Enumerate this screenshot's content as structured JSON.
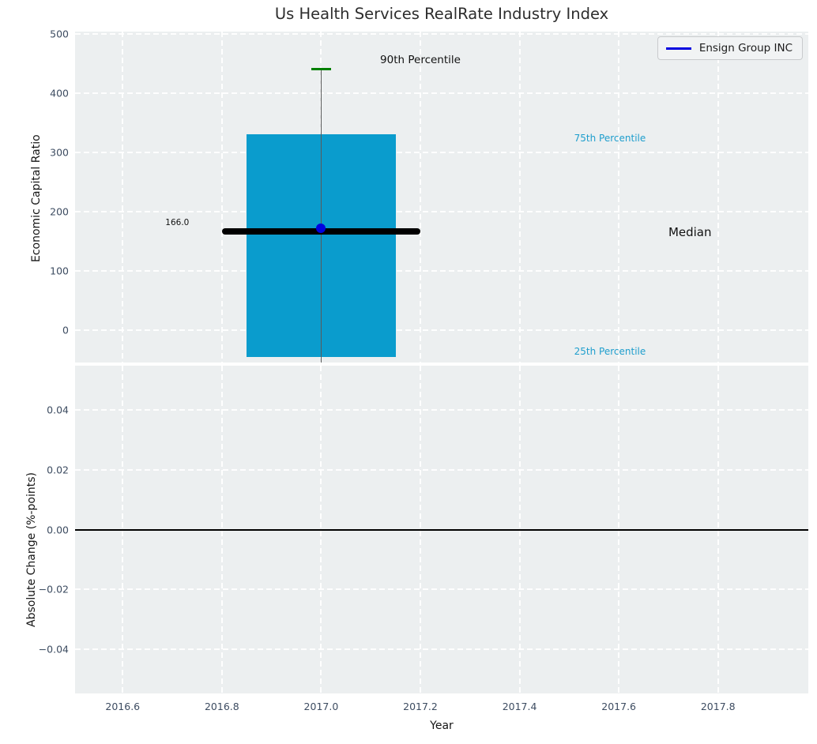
{
  "legend": {
    "label": "Ensign Group INC",
    "line_color": "#0101e0",
    "position": "upper right"
  },
  "colors": {
    "figure_background": "#ffffff",
    "axes_background": "#eceff0",
    "grid": "#ffffff",
    "tick_label": "#3d4c61",
    "bar": "#0a9ccd",
    "median": "#000000",
    "whisker": "#5a5a5a",
    "percentile_cap": "#008000",
    "company": "#0101e0",
    "percentile_text": "#1e9ecd"
  },
  "chart_data": [
    {
      "type": "bar",
      "title": "Us Health Services RealRate Industry Index",
      "ylabel": "Economic Capital Ratio",
      "xlabel": "",
      "xlim": [
        2016.504,
        2017.982
      ],
      "ylim": [
        -54.7,
        503.5
      ],
      "grid": true,
      "legend_position": "upper right",
      "yticks": [
        {
          "v": 0,
          "label": "0"
        },
        {
          "v": 100,
          "label": "100"
        },
        {
          "v": 200,
          "label": "200"
        },
        {
          "v": 300,
          "label": "300"
        },
        {
          "v": 400,
          "label": "400"
        },
        {
          "v": 500,
          "label": "500"
        }
      ],
      "xticks": [
        {
          "v": 2016.6,
          "label": "2016.6"
        },
        {
          "v": 2016.8,
          "label": "2016.8"
        },
        {
          "v": 2017.0,
          "label": "2017.0"
        },
        {
          "v": 2017.2,
          "label": "2017.2"
        },
        {
          "v": 2017.4,
          "label": "2017.4"
        },
        {
          "v": 2017.6,
          "label": "2017.6"
        },
        {
          "v": 2017.8,
          "label": "2017.8"
        }
      ],
      "box": {
        "x": 2017.0,
        "bar_width": 0.3,
        "p25": -45,
        "p75": 330,
        "median": 166,
        "p90": 440,
        "median_line_span": [
          2016.8,
          2017.2
        ],
        "cap_halfwidth": 0.02
      },
      "point": {
        "name": "Ensign Group INC",
        "x": 2017.0,
        "y": 172
      },
      "annotations": [
        {
          "id": "median-value",
          "text": "166.0",
          "x": 2016.71,
          "y": 181,
          "color": "#111111",
          "size": 10.5,
          "anchor": "center"
        },
        {
          "id": "p90-label",
          "text": "90th Percentile",
          "x": 2017.2,
          "y": 455,
          "color": "#111111",
          "size": 13.5,
          "anchor": "center"
        },
        {
          "id": "p75-label",
          "text": "75th Percentile",
          "x": 2017.51,
          "y": 324,
          "color": "#1e9ecd",
          "size": 12,
          "anchor": "left"
        },
        {
          "id": "p25-label",
          "text": "25th Percentile",
          "x": 2017.51,
          "y": -36,
          "color": "#1e9ecd",
          "size": 12,
          "anchor": "left"
        },
        {
          "id": "median-label",
          "text": "Median",
          "x": 2017.7,
          "y": 165,
          "color": "#111111",
          "size": 15,
          "anchor": "left"
        }
      ]
    },
    {
      "type": "line",
      "title": "",
      "ylabel": "Absolute Change (%-points)",
      "xlabel": "Year",
      "xlim": [
        2016.504,
        2017.982
      ],
      "ylim": [
        -0.0547,
        0.0547
      ],
      "grid": true,
      "yticks": [
        {
          "v": 0.04,
          "label": "0.04"
        },
        {
          "v": 0.02,
          "label": "0.02"
        },
        {
          "v": 0.0,
          "label": "0.00"
        },
        {
          "v": -0.02,
          "label": "−0.02"
        },
        {
          "v": -0.04,
          "label": "−0.04"
        }
      ],
      "xticks": [
        {
          "v": 2016.6,
          "label": "2016.6"
        },
        {
          "v": 2016.8,
          "label": "2016.8"
        },
        {
          "v": 2017.0,
          "label": "2017.0"
        },
        {
          "v": 2017.2,
          "label": "2017.2"
        },
        {
          "v": 2017.4,
          "label": "2017.4"
        },
        {
          "v": 2017.6,
          "label": "2017.6"
        },
        {
          "v": 2017.8,
          "label": "2017.8"
        }
      ],
      "zero_line": {
        "y": 0.0,
        "color": "#000000"
      },
      "series": []
    }
  ]
}
